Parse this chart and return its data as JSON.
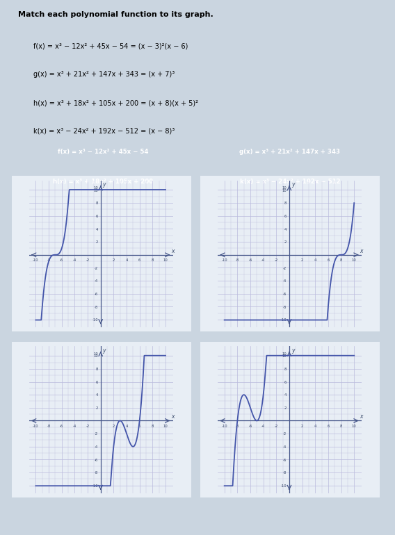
{
  "title": "Match each polynomial function to its graph.",
  "equations": [
    "f(x) = x³ − 12x² + 45x − 54 = (x − 3)²(x − 6)",
    "g(x) = x³ + 21x² + 147x + 343 = (x + 7)³",
    "h(x) = x³ + 18x² + 105x + 200 = (x + 8)(x + 5)²",
    "k(x) = x³ − 24x² + 192x − 512 = (x − 8)³"
  ],
  "label_f": "f(x) = x³ − 12x² + 45x − 54",
  "label_g": "g(x) = x³ + 21x² + 147x + 343",
  "label_h": "h(x) = x³ + 18x² + 105x + 200",
  "label_k": "k(x) = x³ − 24x² + 192x − 512",
  "box_color": "#2244cc",
  "curve_color": "#4455aa",
  "minor_grid_color": "#bbbbdd",
  "major_grid_color": "#9999bb",
  "bg_color": "#cad5e0",
  "graph_bg": "#f8f8ff",
  "answer_box_color": "#b8dcea",
  "xlim": [
    -10,
    10
  ],
  "ylim": [
    -10,
    10
  ]
}
